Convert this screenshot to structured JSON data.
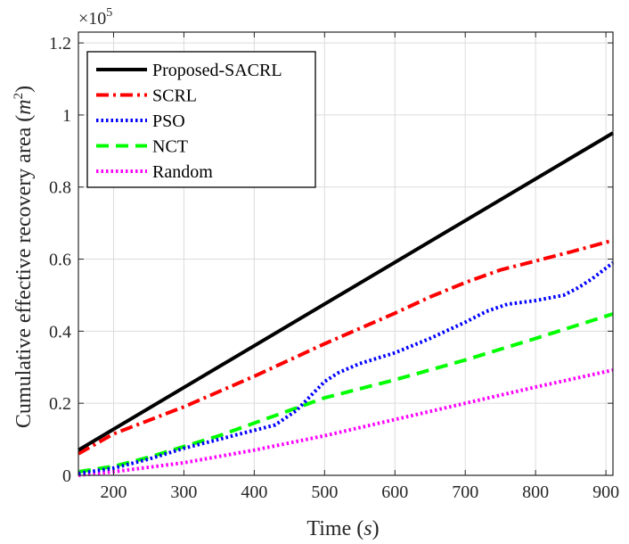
{
  "chart_data": {
    "type": "line",
    "xlabel_main": "Time (",
    "xlabel_var": "s",
    "xlabel_close": ")",
    "ylabel_main": "Cumulative effective recovery area (",
    "ylabel_var": "m",
    "ylabel_sup": "2",
    "ylabel_close": ")",
    "exponent_base": "×10",
    "exponent_power": "5",
    "xlim": [
      150,
      910
    ],
    "ylim": [
      0,
      1.23
    ],
    "grid": true,
    "legend_position": "top-left",
    "x_ticks": [
      200,
      300,
      400,
      500,
      600,
      700,
      800,
      900
    ],
    "x_tick_labels": [
      "200",
      "300",
      "400",
      "500",
      "600",
      "700",
      "800",
      "900"
    ],
    "y_ticks": [
      0,
      0.2,
      0.4,
      0.6,
      0.8,
      1.0,
      1.2
    ],
    "y_tick_labels": [
      "0",
      "0.2",
      "0.4",
      "0.6",
      "0.8",
      "1",
      "1.2"
    ],
    "series": [
      {
        "name": "Proposed-SACRL",
        "color": "#000000",
        "dash": "solid",
        "x": [
          150,
          910
        ],
        "y": [
          0.07,
          0.95
        ]
      },
      {
        "name": "SCRL",
        "color": "#ff0000",
        "dash": "dashdot",
        "x": [
          150,
          200,
          300,
          400,
          500,
          600,
          650,
          700,
          750,
          800,
          850,
          910
        ],
        "y": [
          0.06,
          0.115,
          0.19,
          0.275,
          0.365,
          0.45,
          0.495,
          0.535,
          0.57,
          0.595,
          0.62,
          0.652
        ]
      },
      {
        "name": "PSO",
        "color": "#0000ff",
        "dash": "dotted",
        "x": [
          150,
          200,
          250,
          300,
          350,
          400,
          430,
          460,
          480,
          500,
          520,
          550,
          600,
          650,
          700,
          730,
          760,
          800,
          840,
          860,
          880,
          900,
          910
        ],
        "y": [
          0.005,
          0.02,
          0.045,
          0.075,
          0.1,
          0.125,
          0.14,
          0.18,
          0.22,
          0.26,
          0.285,
          0.31,
          0.34,
          0.38,
          0.425,
          0.455,
          0.475,
          0.485,
          0.5,
          0.52,
          0.545,
          0.575,
          0.59
        ]
      },
      {
        "name": "NCT",
        "color": "#00ff00",
        "dash": "dashed",
        "x": [
          150,
          200,
          250,
          300,
          350,
          400,
          450,
          500,
          600,
          700,
          800,
          910
        ],
        "y": [
          0.01,
          0.025,
          0.05,
          0.08,
          0.11,
          0.145,
          0.18,
          0.215,
          0.265,
          0.32,
          0.38,
          0.448
        ]
      },
      {
        "name": "Random",
        "color": "#ff00ff",
        "dash": "dotted",
        "x": [
          150,
          200,
          300,
          400,
          500,
          600,
          700,
          800,
          910
        ],
        "y": [
          0.0,
          0.01,
          0.035,
          0.07,
          0.11,
          0.155,
          0.2,
          0.245,
          0.292
        ]
      }
    ]
  }
}
